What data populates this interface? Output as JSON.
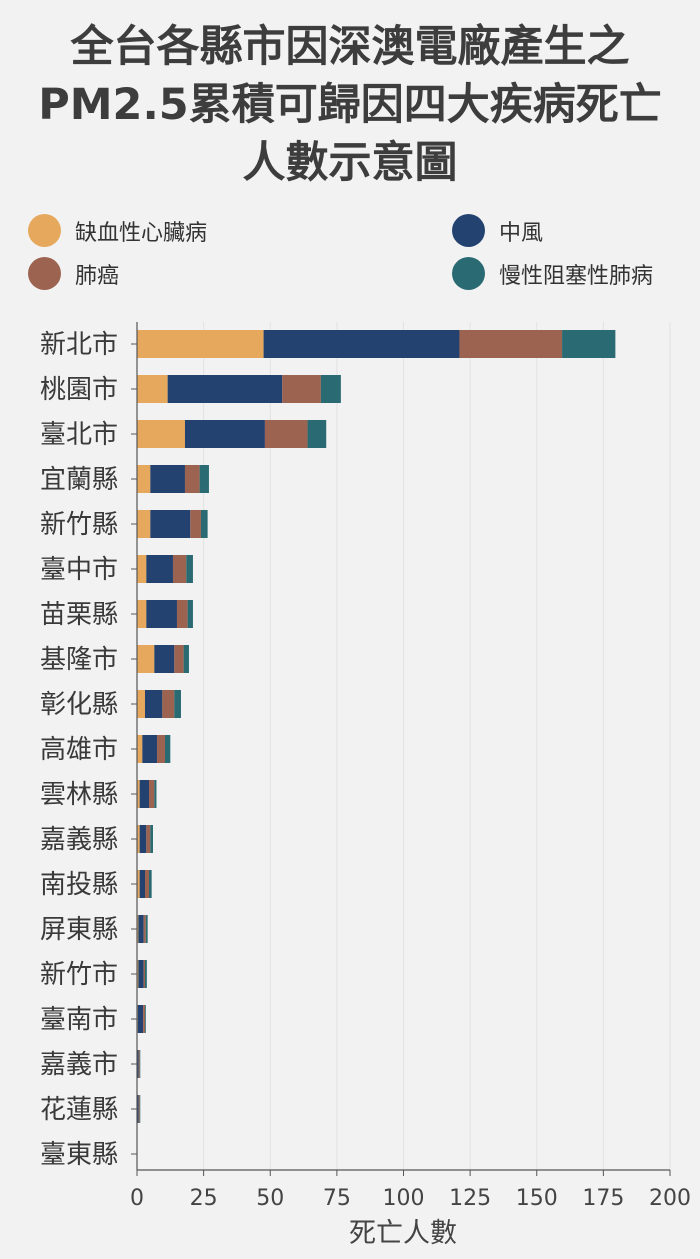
{
  "title": {
    "line1": "全台各縣市因深澳電廠產生之",
    "line2": "PM2.5累積可歸因四大疾病死亡",
    "line3": "人數示意圖"
  },
  "legend": [
    {
      "label": "缺血性心臟病",
      "color": "#e6a85c"
    },
    {
      "label": "中風",
      "color": "#234270"
    },
    {
      "label": "肺癌",
      "color": "#9b6350"
    },
    {
      "label": "慢性阻塞性肺病",
      "color": "#2a6b73"
    }
  ],
  "chart_data": {
    "type": "bar",
    "orientation": "horizontal",
    "stacked": true,
    "xlabel": "死亡人數",
    "xlim": [
      0,
      200
    ],
    "xticks": [
      0,
      25,
      50,
      75,
      100,
      125,
      150,
      175,
      200
    ],
    "grid": true,
    "categories": [
      "新北市",
      "桃園市",
      "臺北市",
      "宜蘭縣",
      "新竹縣",
      "臺中市",
      "苗栗縣",
      "基隆市",
      "彰化縣",
      "高雄市",
      "雲林縣",
      "嘉義縣",
      "南投縣",
      "屏東縣",
      "新竹市",
      "臺南市",
      "嘉義市",
      "花蓮縣",
      "臺東縣"
    ],
    "series": [
      {
        "name": "缺血性心臟病",
        "color": "#e6a85c",
        "values": [
          47.5,
          11.5,
          18,
          5,
          5,
          3.5,
          3.5,
          6.5,
          3,
          2,
          1,
          1,
          1,
          0.5,
          0.5,
          0.3,
          0.1,
          0.1,
          0
        ]
      },
      {
        "name": "中風",
        "color": "#234270",
        "values": [
          73.5,
          43,
          30,
          13,
          15,
          10,
          11.5,
          7.5,
          6.5,
          5.5,
          3.5,
          2.5,
          2,
          2,
          2,
          2,
          0.5,
          0.5,
          0
        ]
      },
      {
        "name": "肺癌",
        "color": "#9b6350",
        "values": [
          38.5,
          14.5,
          16,
          5.5,
          4,
          5,
          4,
          3.5,
          4.5,
          3,
          2,
          1.5,
          1.5,
          0.8,
          0.5,
          0.7,
          0.4,
          0.4,
          0
        ]
      },
      {
        "name": "慢性阻塞性肺病",
        "color": "#2a6b73",
        "values": [
          20,
          7.5,
          7,
          3.5,
          2.5,
          2.5,
          2,
          2,
          2.5,
          2,
          0.8,
          1,
          1,
          0.7,
          0.7,
          0.3,
          0.2,
          0.2,
          0
        ]
      }
    ]
  }
}
